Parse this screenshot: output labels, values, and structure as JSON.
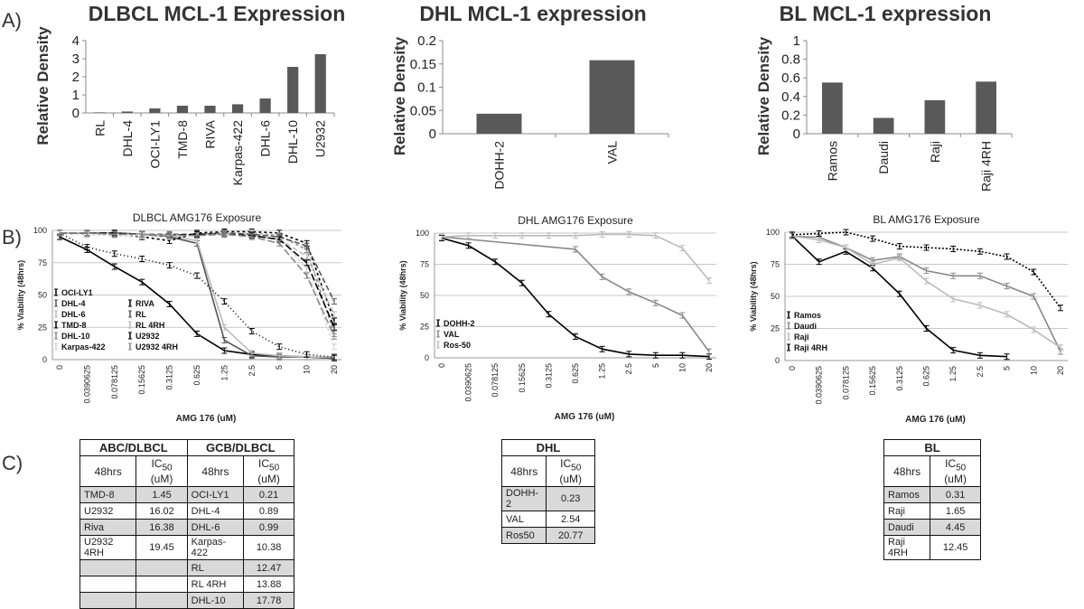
{
  "panels": {
    "a": "A)",
    "b": "B)",
    "c": "C)"
  },
  "colors": {
    "bar": "#595959",
    "axis": "#888888",
    "grid": "#c8c8c8",
    "black": "#000000",
    "dark": "#555555",
    "mid": "#888888",
    "light": "#bbbbbb",
    "pale": "#d3d3d3",
    "shade": "#d9d9d9"
  },
  "chart_data": [
    {
      "id": "dlbcl-bar",
      "type": "bar",
      "title": "DLBCL MCL-1 Expression",
      "ylabel": "Relative Density",
      "xlabel": "",
      "ylim": [
        0,
        4
      ],
      "yticks": [
        0,
        1,
        2,
        3,
        4
      ],
      "categories": [
        "RL",
        "DHL-4",
        "OCI-LY1",
        "TMD-8",
        "RIVA",
        "Karpas-422",
        "DHL-6",
        "DHL-10",
        "U2932"
      ],
      "values": [
        0.03,
        0.08,
        0.25,
        0.4,
        0.4,
        0.48,
        0.8,
        2.55,
        3.25
      ]
    },
    {
      "id": "dhl-bar",
      "type": "bar",
      "title": "DHL MCL-1 expression",
      "ylabel": "Relative Density",
      "xlabel": "",
      "ylim": [
        0,
        0.2
      ],
      "yticks": [
        0,
        0.05,
        0.1,
        0.15,
        0.2
      ],
      "categories": [
        "DOHH-2",
        "VAL"
      ],
      "values": [
        0.043,
        0.158
      ]
    },
    {
      "id": "bl-bar",
      "type": "bar",
      "title": "BL MCL-1 expression",
      "ylabel": "Relative Density",
      "xlabel": "",
      "ylim": [
        0,
        1
      ],
      "yticks": [
        0,
        0.2,
        0.4,
        0.6,
        0.8,
        1
      ],
      "categories": [
        "Ramos",
        "Daudi",
        "Raji",
        "Raji 4RH"
      ],
      "values": [
        0.55,
        0.17,
        0.36,
        0.56
      ]
    },
    {
      "id": "dlbcl-line",
      "type": "line",
      "title": "DLBCL AMG176 Exposure",
      "ylabel": "% Viability (48hrs)",
      "xlabel": "AMG 176 (uM)",
      "ylim": [
        0,
        100
      ],
      "yticks": [
        0,
        25,
        50,
        75,
        100
      ],
      "x": [
        "0",
        "0.0390625",
        "0.078125",
        "0.15625",
        "0.3125",
        "0.625",
        "1.25",
        "2.5",
        "5",
        "10",
        "20"
      ],
      "series": [
        {
          "name": "OCI-LY1",
          "color": "black",
          "dash": "",
          "values": [
            95,
            85,
            72,
            60,
            43,
            20,
            7,
            4,
            3,
            2,
            1
          ]
        },
        {
          "name": "DHL-4",
          "color": "dark",
          "dash": "",
          "values": [
            98,
            98,
            98,
            97,
            95,
            90,
            15,
            3,
            2,
            2,
            1
          ]
        },
        {
          "name": "DHL-6",
          "color": "light",
          "dash": "",
          "values": [
            98,
            98,
            98,
            97,
            96,
            92,
            25,
            5,
            3,
            2,
            2
          ]
        },
        {
          "name": "TMD-8",
          "color": "black",
          "dash": "3,3",
          "values": [
            98,
            97,
            97,
            95,
            92,
            98,
            99,
            99,
            98,
            90,
            30
          ]
        },
        {
          "name": "DHL-10",
          "color": "mid",
          "dash": "3,3",
          "values": [
            98,
            98,
            98,
            97,
            96,
            97,
            98,
            98,
            96,
            85,
            20
          ]
        },
        {
          "name": "Karpas-422",
          "color": "pale",
          "dash": "3,3",
          "values": [
            98,
            97,
            96,
            96,
            95,
            97,
            98,
            98,
            95,
            70,
            10
          ]
        },
        {
          "name": "RIVA",
          "color": "black",
          "dash": "1,3",
          "values": [
            98,
            87,
            82,
            78,
            73,
            65,
            45,
            22,
            10,
            4,
            2
          ]
        },
        {
          "name": "RL",
          "color": "dark",
          "dash": "6,3",
          "values": [
            98,
            98,
            98,
            97,
            97,
            97,
            98,
            97,
            95,
            88,
            45
          ]
        },
        {
          "name": "RL 4RH",
          "color": "light",
          "dash": "6,3",
          "values": [
            98,
            98,
            97,
            97,
            96,
            97,
            97,
            96,
            93,
            80,
            35
          ]
        },
        {
          "name": "U2932",
          "color": "black",
          "dash": "8,3",
          "values": [
            98,
            98,
            98,
            97,
            96,
            97,
            97,
            96,
            93,
            75,
            25
          ]
        },
        {
          "name": "U2932 4RH",
          "color": "mid",
          "dash": "8,3",
          "values": [
            98,
            98,
            97,
            97,
            96,
            96,
            97,
            95,
            90,
            65,
            18
          ]
        }
      ],
      "legend_left": [
        "OCI-LY1",
        "DHL-4",
        "DHL-6",
        "TMD-8",
        "DHL-10",
        "Karpas-422"
      ],
      "legend_right": [
        "RIVA",
        "RL",
        "RL 4RH",
        "U2932",
        "U2932 4RH"
      ]
    },
    {
      "id": "dhl-line",
      "type": "line",
      "title": "DHL AMG176 Exposure",
      "ylabel": "% Viability (48hrs)",
      "xlabel": "AMG 176 (uM)",
      "ylim": [
        0,
        100
      ],
      "yticks": [
        0,
        25,
        50,
        75,
        100
      ],
      "x": [
        "0",
        "0.0390625",
        "0.078125",
        "0.15625",
        "0.3125",
        "0.625",
        "1.25",
        "2.5",
        "5",
        "10",
        "20"
      ],
      "series": [
        {
          "name": "DOHH-2",
          "color": "black",
          "dash": "",
          "values": [
            96,
            90,
            77,
            60,
            35,
            17,
            7,
            3,
            2,
            2,
            1
          ]
        },
        {
          "name": "VAL",
          "color": "mid",
          "dash": "",
          "values": [
            97,
            null,
            null,
            null,
            null,
            87,
            65,
            53,
            44,
            34,
            5
          ]
        },
        {
          "name": "Ros-50",
          "color": "light",
          "dash": "",
          "values": [
            97,
            98,
            98,
            98,
            98,
            98,
            99,
            99,
            98,
            88,
            62
          ]
        }
      ],
      "legend_left": [
        "DOHH-2",
        "VAL",
        "Ros-50"
      ],
      "legend_right": []
    },
    {
      "id": "bl-line",
      "type": "line",
      "title": "BL AMG176 Exposure",
      "ylabel": "% Viability (48hrs)",
      "xlabel": "AMG 176 (uM)",
      "ylim": [
        0,
        100
      ],
      "yticks": [
        0,
        25,
        50,
        75,
        100
      ],
      "x": [
        "0",
        "0.0390625",
        "0.078125",
        "0.15625",
        "0.3125",
        "0.625",
        "1.25",
        "2.5",
        "5",
        "10",
        "20"
      ],
      "series": [
        {
          "name": "Ramos",
          "color": "black",
          "dash": "",
          "values": [
            97,
            77,
            85,
            72,
            52,
            25,
            8,
            4,
            3,
            null,
            null
          ]
        },
        {
          "name": "Daudi",
          "color": "mid",
          "dash": "",
          "values": [
            97,
            96,
            88,
            78,
            81,
            70,
            66,
            66,
            58,
            50,
            7
          ]
        },
        {
          "name": "Raji",
          "color": "light",
          "dash": "",
          "values": [
            97,
            94,
            88,
            75,
            80,
            62,
            48,
            43,
            36,
            24,
            10
          ]
        },
        {
          "name": "Raji 4RH",
          "color": "black",
          "dash": "2,2",
          "values": [
            98,
            99,
            100,
            95,
            89,
            88,
            87,
            85,
            81,
            69,
            41
          ]
        }
      ],
      "legend_left": [
        "Ramos",
        "Daudi",
        "Raji",
        "Raji 4RH"
      ],
      "legend_right": []
    },
    {
      "id": "ic50-tables",
      "type": "table",
      "abc": {
        "group_a": "ABC/DLBCL",
        "group_b": "GCB/DLBCL",
        "col_hrs": "48hrs",
        "col_ic": "IC",
        "col_ic_sub": "50",
        "col_ic_unit": " (uM)",
        "rows": [
          [
            "TMD-8",
            "1.45",
            "OCI-LY1",
            "0.21"
          ],
          [
            "U2932",
            "16.02",
            "DHL-4",
            "0.89"
          ],
          [
            "Riva",
            "16.38",
            "DHL-6",
            "0.99"
          ],
          [
            "U2932 4RH",
            "19.45",
            "Karpas-422",
            "10.38"
          ],
          [
            "",
            "",
            "RL",
            "12.47"
          ],
          [
            "",
            "",
            "RL 4RH",
            "13.88"
          ],
          [
            "",
            "",
            "DHL-10",
            "17.78"
          ]
        ]
      },
      "dhl": {
        "title": "DHL",
        "col_hrs": "48hrs",
        "col_ic": "IC",
        "col_ic_sub": "50",
        "col_ic_unit": " (uM)",
        "rows": [
          [
            "DOHH-2",
            "0.23"
          ],
          [
            "VAL",
            "2.54"
          ],
          [
            "Ros50",
            "20.77"
          ]
        ]
      },
      "bl": {
        "title": "BL",
        "col_hrs": "48hrs",
        "col_ic": "IC",
        "col_ic_sub": "50",
        "col_ic_unit": " (uM)",
        "rows": [
          [
            "Ramos",
            "0.31"
          ],
          [
            "Raji",
            "1.65"
          ],
          [
            "Daudi",
            "4.45"
          ],
          [
            "Raji 4RH",
            "12.45"
          ]
        ]
      }
    }
  ]
}
